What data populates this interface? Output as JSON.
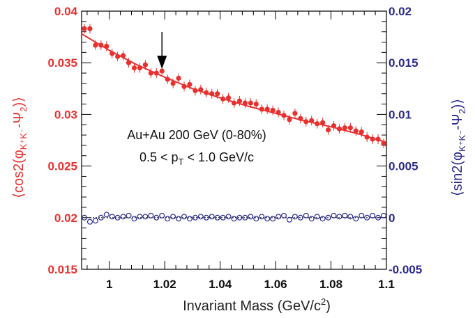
{
  "chart_data": {
    "type": "scatter",
    "xlabel": "Invariant Mass (GeV/c²)",
    "xlim": [
      0.99,
      1.1
    ],
    "x_ticks": [
      "1",
      "1.02",
      "1.04",
      "1.06",
      "1.08",
      "1.1"
    ],
    "y_left": {
      "label": "⟨cos2(φK⁺K⁻-Ψ2)⟩",
      "lim": [
        0.015,
        0.04
      ],
      "ticks": [
        "0.015",
        "0.02",
        "0.025",
        "0.03",
        "0.035",
        "0.04"
      ],
      "color": "#e8302e"
    },
    "y_right": {
      "label": "⟨sin2(φK⁺K⁻-Ψ2)⟩",
      "lim": [
        -0.005,
        0.02
      ],
      "ticks": [
        "-0.005",
        "0",
        "0.005",
        "0.01",
        "0.015",
        "0.02"
      ],
      "color": "#2a2a8c"
    },
    "annotation": {
      "line1": "Au+Au 200 GeV (0-80%)",
      "line2": "0.5 < pT < 1.0 GeV/c",
      "arrow_x": 1.019
    },
    "series": [
      {
        "axis": "left",
        "marker": "filled-circle",
        "color": "#e8302e",
        "x": [
          0.991,
          0.993,
          0.995,
          0.997,
          0.999,
          1.001,
          1.003,
          1.005,
          1.007,
          1.009,
          1.011,
          1.013,
          1.015,
          1.017,
          1.019,
          1.021,
          1.023,
          1.025,
          1.027,
          1.029,
          1.031,
          1.033,
          1.035,
          1.037,
          1.039,
          1.041,
          1.043,
          1.045,
          1.047,
          1.049,
          1.051,
          1.053,
          1.055,
          1.057,
          1.059,
          1.061,
          1.063,
          1.065,
          1.067,
          1.069,
          1.071,
          1.073,
          1.075,
          1.077,
          1.079,
          1.081,
          1.083,
          1.085,
          1.087,
          1.089,
          1.091,
          1.093,
          1.095,
          1.097,
          1.099
        ],
        "y": [
          0.0383,
          0.0383,
          0.0367,
          0.0367,
          0.0366,
          0.0359,
          0.0356,
          0.0357,
          0.035,
          0.0345,
          0.0345,
          0.0348,
          0.034,
          0.034,
          0.0342,
          0.0334,
          0.033,
          0.0335,
          0.0327,
          0.0329,
          0.0323,
          0.0324,
          0.0321,
          0.032,
          0.032,
          0.0315,
          0.0316,
          0.0311,
          0.0313,
          0.0311,
          0.0311,
          0.031,
          0.0305,
          0.0305,
          0.0304,
          0.0302,
          0.0299,
          0.0295,
          0.0301,
          0.0296,
          0.0293,
          0.0294,
          0.0291,
          0.0292,
          0.0285,
          0.0289,
          0.0286,
          0.0287,
          0.0287,
          0.0284,
          0.0283,
          0.0278,
          0.0276,
          0.0276,
          0.0272
        ]
      },
      {
        "axis": "left",
        "marker": "line-fit",
        "color": "#e8302e",
        "x": [
          0.99,
          1.0,
          1.01,
          1.02,
          1.03,
          1.04,
          1.05,
          1.06,
          1.07,
          1.08,
          1.09,
          1.1
        ],
        "y": [
          0.0378,
          0.0362,
          0.0348,
          0.0336,
          0.0325,
          0.0316,
          0.0308,
          0.0301,
          0.0294,
          0.0288,
          0.0281,
          0.0273
        ]
      },
      {
        "axis": "right",
        "marker": "open-circle",
        "color": "#2a2a8c",
        "x": [
          0.991,
          0.993,
          0.995,
          0.997,
          0.999,
          1.001,
          1.003,
          1.005,
          1.007,
          1.009,
          1.011,
          1.013,
          1.015,
          1.017,
          1.019,
          1.021,
          1.023,
          1.025,
          1.027,
          1.029,
          1.031,
          1.033,
          1.035,
          1.037,
          1.039,
          1.041,
          1.043,
          1.045,
          1.047,
          1.049,
          1.051,
          1.053,
          1.055,
          1.057,
          1.059,
          1.061,
          1.063,
          1.065,
          1.067,
          1.069,
          1.071,
          1.073,
          1.075,
          1.077,
          1.079,
          1.081,
          1.083,
          1.085,
          1.087,
          1.089,
          1.091,
          1.093,
          1.095,
          1.097,
          1.099
        ],
        "y": [
          0.0,
          -0.0004,
          -0.0003,
          0.0,
          0.0003,
          0.0001,
          0.0,
          0.0001,
          0.0002,
          -0.0001,
          0.0001,
          0.0001,
          0.0002,
          0.0,
          0.0002,
          -0.0001,
          0.0001,
          -0.0001,
          0.0001,
          -0.0001,
          0.0,
          0.0001,
          0.0,
          0.0001,
          0.0,
          0.0,
          0.0001,
          -0.0001,
          0.0,
          0.0,
          0.0001,
          -0.0001,
          0.0001,
          -0.0001,
          -0.0001,
          0.0001,
          0.0002,
          -0.0002,
          0.0001,
          0.0,
          0.0002,
          -0.0001,
          0.0001,
          -0.0001,
          0.0,
          0.0002,
          0.0001,
          0.0002,
          0.0001,
          -0.0001,
          0.0002,
          0.0,
          0.0002,
          0.0,
          0.0002
        ]
      }
    ]
  }
}
